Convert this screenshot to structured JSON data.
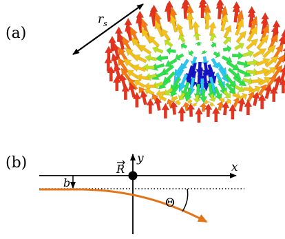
{
  "panel_a": {
    "label": "(a)",
    "radius_label": "r",
    "radius_subscript": "s"
  },
  "panel_b": {
    "label": "(b)",
    "axis_x_label": "x",
    "axis_y_label": "y",
    "center_label": "R",
    "impact_label": "b",
    "angle_label": "Θ",
    "colors": {
      "trajectory": "#e0761c",
      "axes": "#000000"
    }
  },
  "skyrmion_colors": [
    "#1515c8",
    "#28c8f0",
    "#2ee04a",
    "#bfe020",
    "#f2c21a",
    "#f57a12",
    "#e6331e"
  ]
}
